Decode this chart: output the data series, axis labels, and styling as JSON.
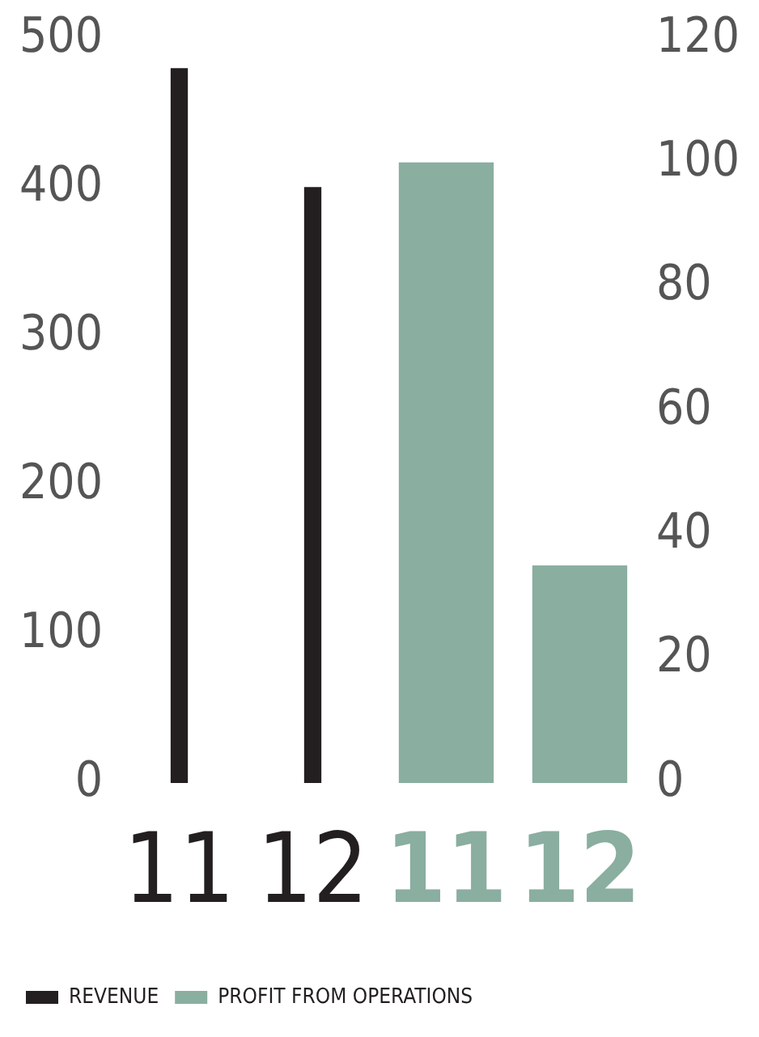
{
  "chart_data": {
    "type": "bar",
    "categories": [
      "11",
      "12",
      "11",
      "12"
    ],
    "series": [
      {
        "name": "REVENUE",
        "color": "#231f20",
        "values": [
          480,
          400,
          null,
          null
        ]
      },
      {
        "name": "PROFIT FROM OPERATIONS",
        "color": "#8aaea0",
        "values": [
          null,
          null,
          100,
          35
        ],
        "axis": "y2"
      }
    ],
    "ylim": [
      0,
      500
    ],
    "yticks": [
      0,
      100,
      200,
      300,
      400,
      500
    ],
    "y2lim": [
      0,
      120
    ],
    "y2ticks": [
      0,
      20,
      40,
      60,
      80,
      100,
      120
    ],
    "legend": "bottom left",
    "grid": false
  }
}
